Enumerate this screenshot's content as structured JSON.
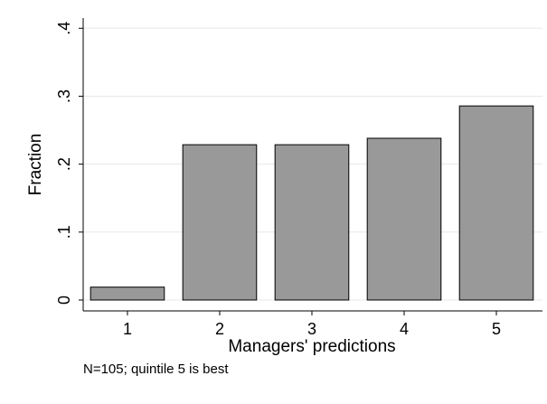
{
  "chart_data": {
    "type": "bar",
    "x": [
      1,
      2,
      3,
      4,
      5
    ],
    "values": [
      0.019,
      0.2286,
      0.2286,
      0.2381,
      0.2857
    ],
    "color": "#999999",
    "xlabel": "Managers' predictions",
    "ylabel": "Fraction",
    "note": "N=105; quintile 5 is best",
    "xlim": [
      0.52,
      5.5
    ],
    "xticks": [
      1,
      2,
      3,
      4,
      5
    ],
    "ylim": [
      -0.016,
      0.415
    ],
    "yticks": [
      0,
      {
        "value": 0.1,
        "label": ".1"
      },
      {
        "value": 0.2,
        "label": ".2"
      },
      {
        "value": 0.3,
        "label": ".3"
      },
      {
        "value": 0.4,
        "label": ".4"
      }
    ],
    "grid": true
  }
}
